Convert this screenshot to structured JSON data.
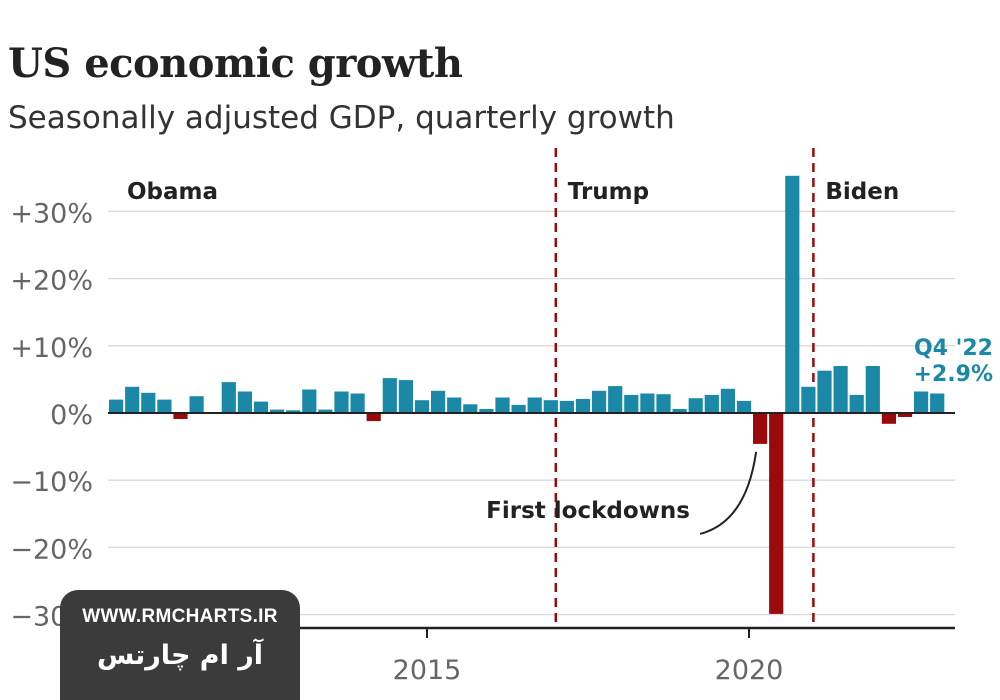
{
  "title": "US economic growth",
  "subtitle": "Seasonally adjusted GDP, quarterly growth",
  "colors": {
    "positive": "#1c88a8",
    "negative": "#9b0a0a",
    "divider": "#9b0a0a",
    "grid": "#d9d9d9",
    "axis": "#222222",
    "tick": "#666666",
    "latest_label": "#1c88a8"
  },
  "watermark": {
    "url": "WWW.RMCHARTS.IR",
    "name_fa": "آر ام چارتس"
  },
  "chart_data": {
    "type": "bar",
    "x_start": "2010 Q1",
    "values": [
      2.0,
      3.9,
      3.0,
      2.0,
      -0.9,
      2.5,
      0.0,
      4.6,
      3.2,
      1.7,
      0.5,
      0.4,
      3.5,
      0.5,
      3.2,
      2.9,
      -1.2,
      5.2,
      4.9,
      1.9,
      3.3,
      2.3,
      1.3,
      0.6,
      2.3,
      1.2,
      2.3,
      1.9,
      1.8,
      2.1,
      3.3,
      4.0,
      2.7,
      2.9,
      2.8,
      0.6,
      2.2,
      2.7,
      3.6,
      1.8,
      -4.6,
      -29.9,
      35.3,
      3.9,
      6.3,
      7.0,
      2.7,
      7.0,
      -1.6,
      -0.6,
      3.2,
      2.9
    ],
    "ylim": [
      -30,
      35
    ],
    "yticks": [
      30,
      20,
      10,
      0,
      -10,
      -20,
      -30
    ],
    "ytick_labels": [
      "+30%",
      "+20%",
      "+10%",
      "0%",
      "−10%",
      "−20%",
      "−30%"
    ],
    "xticks": [
      2010,
      2015,
      2020
    ],
    "xtick_labels": [
      "2010",
      "2015",
      "2020"
    ],
    "grid": true,
    "eras": [
      {
        "label": "Obama",
        "start_year": 2009
      },
      {
        "label": "Trump",
        "start_year": 2017
      },
      {
        "label": "Biden",
        "start_year": 2021
      }
    ],
    "annotations": [
      {
        "text": "First lockdowns",
        "target": "2020 Q1"
      }
    ],
    "latest": {
      "period_label": "Q4 '22",
      "value_label": "+2.9%"
    }
  }
}
